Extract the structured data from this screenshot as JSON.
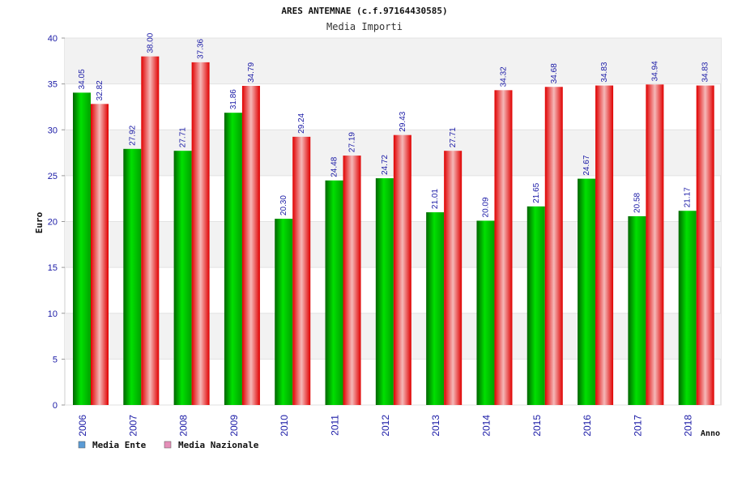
{
  "chart_data": {
    "type": "bar",
    "title": "ARES ANTEMNAE (c.f.97164430585)",
    "subtitle": "Media Importi",
    "xlabel": "Anno",
    "ylabel": "Euro",
    "ylim": [
      0,
      40
    ],
    "yticks": [
      0,
      5,
      10,
      15,
      20,
      25,
      30,
      35,
      40
    ],
    "grid": "horizontal bands",
    "legend_position": "bottom-left",
    "categories": [
      "2006",
      "2007",
      "2008",
      "2009",
      "2010",
      "2011",
      "2012",
      "2013",
      "2014",
      "2015",
      "2016",
      "2017",
      "2018"
    ],
    "series": [
      {
        "name": "Media Ente",
        "color": "#00b000",
        "legend_color": "#5b9bd5",
        "values": [
          34.05,
          27.92,
          27.71,
          31.86,
          20.3,
          24.48,
          24.72,
          21.01,
          20.09,
          21.65,
          24.67,
          20.58,
          21.17
        ],
        "labels": [
          "34.05",
          "27.92",
          "27.71",
          "31.86",
          "20.30",
          "24.48",
          "24.72",
          "21.01",
          "20.09",
          "21.65",
          "24.67",
          "20.58",
          "21.17"
        ]
      },
      {
        "name": "Media Nazionale",
        "color": "#ff0000",
        "legend_color": "#e58fb8",
        "values": [
          32.82,
          38.0,
          37.36,
          34.79,
          29.24,
          27.19,
          29.43,
          27.71,
          34.32,
          34.68,
          34.83,
          34.94,
          34.83
        ],
        "labels": [
          "32.82",
          "38.00",
          "37.36",
          "34.79",
          "29.24",
          "27.19",
          "29.43",
          "27.71",
          "34.32",
          "34.68",
          "34.83",
          "34.94",
          "34.83"
        ]
      }
    ]
  }
}
